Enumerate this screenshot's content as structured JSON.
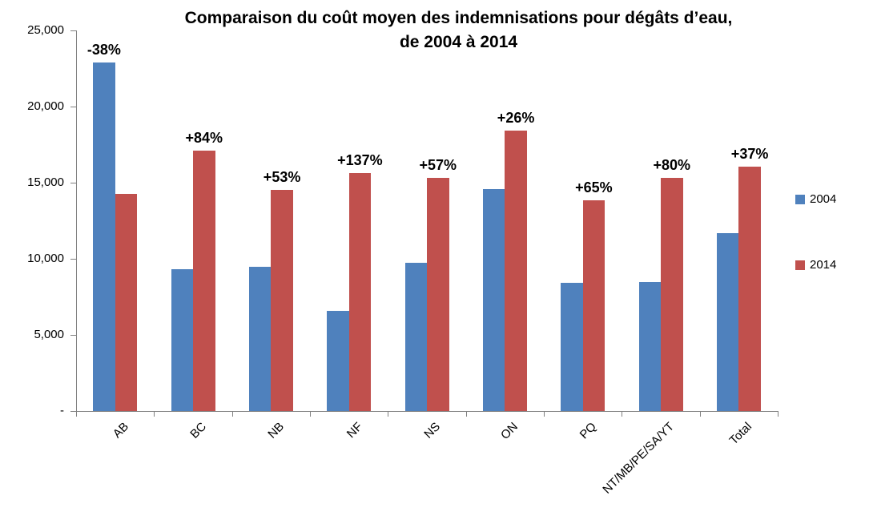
{
  "chart": {
    "title_line1": "Comparaison du coût moyen des indemnisations pour dégâts d’eau,",
    "title_line2": "de 2004 à 2014"
  },
  "chart_data": {
    "type": "bar",
    "title": "Comparaison du coût moyen des indemnisations pour dégâts d’eau, de 2004 à 2014",
    "categories": [
      "AB",
      "BC",
      "NB",
      "NF",
      "NS",
      "ON",
      "PQ",
      "NT/MB/PE/SA/YT",
      "Total"
    ],
    "series": [
      {
        "name": "2004",
        "color": "#4F81BD",
        "values": [
          22900,
          9300,
          9500,
          6600,
          9750,
          14600,
          8400,
          8500,
          11700
        ]
      },
      {
        "name": "2014",
        "color": "#C0504D",
        "values": [
          14250,
          17100,
          14550,
          15650,
          15300,
          18400,
          13850,
          15300,
          16050
        ]
      }
    ],
    "bar_labels": [
      "-38%",
      "+84%",
      "+53%",
      "+137%",
      "+57%",
      "+26%",
      "+65%",
      "+80%",
      "+37%"
    ],
    "xlabel": "",
    "ylabel": "",
    "ylim": [
      0,
      25000
    ],
    "y_ticks": [
      {
        "value": 0,
        "label": "-"
      },
      {
        "value": 5000,
        "label": "5,000"
      },
      {
        "value": 10000,
        "label": "10,000"
      },
      {
        "value": 15000,
        "label": "15,000"
      },
      {
        "value": 20000,
        "label": "20,000"
      },
      {
        "value": 25000,
        "label": "25,000"
      }
    ],
    "grid": false,
    "legend_position": "right",
    "axis_color": "#808080"
  }
}
